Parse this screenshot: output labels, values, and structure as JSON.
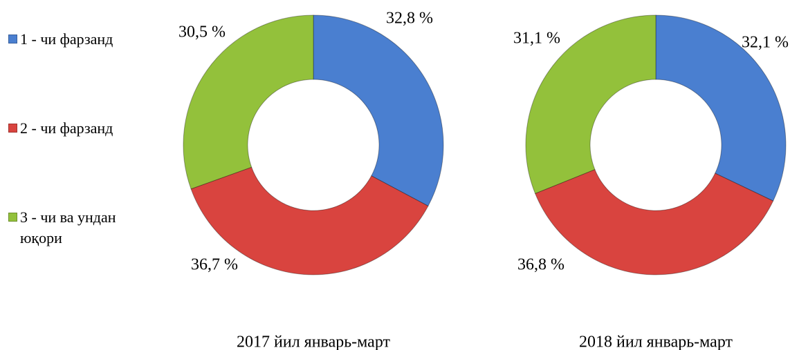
{
  "legend": {
    "items": [
      "1 - чи фарзанд",
      "2 - чи фарзанд",
      "3 - чи ва ундан юқори"
    ],
    "colors": [
      "#4a7fd0",
      "#d9443f",
      "#93c13b"
    ]
  },
  "chart_data": [
    {
      "type": "donut",
      "title": "2017 йил январь-март",
      "values": [
        32.8,
        36.7,
        30.5
      ],
      "value_labels": [
        "32,8 %",
        "36,7 %",
        "30,5 %"
      ]
    },
    {
      "type": "donut",
      "title": "2018 йил январь-март",
      "values": [
        32.1,
        36.8,
        31.1
      ],
      "value_labels": [
        "32,1 %",
        "36,8 %",
        "31,1 %"
      ]
    }
  ]
}
